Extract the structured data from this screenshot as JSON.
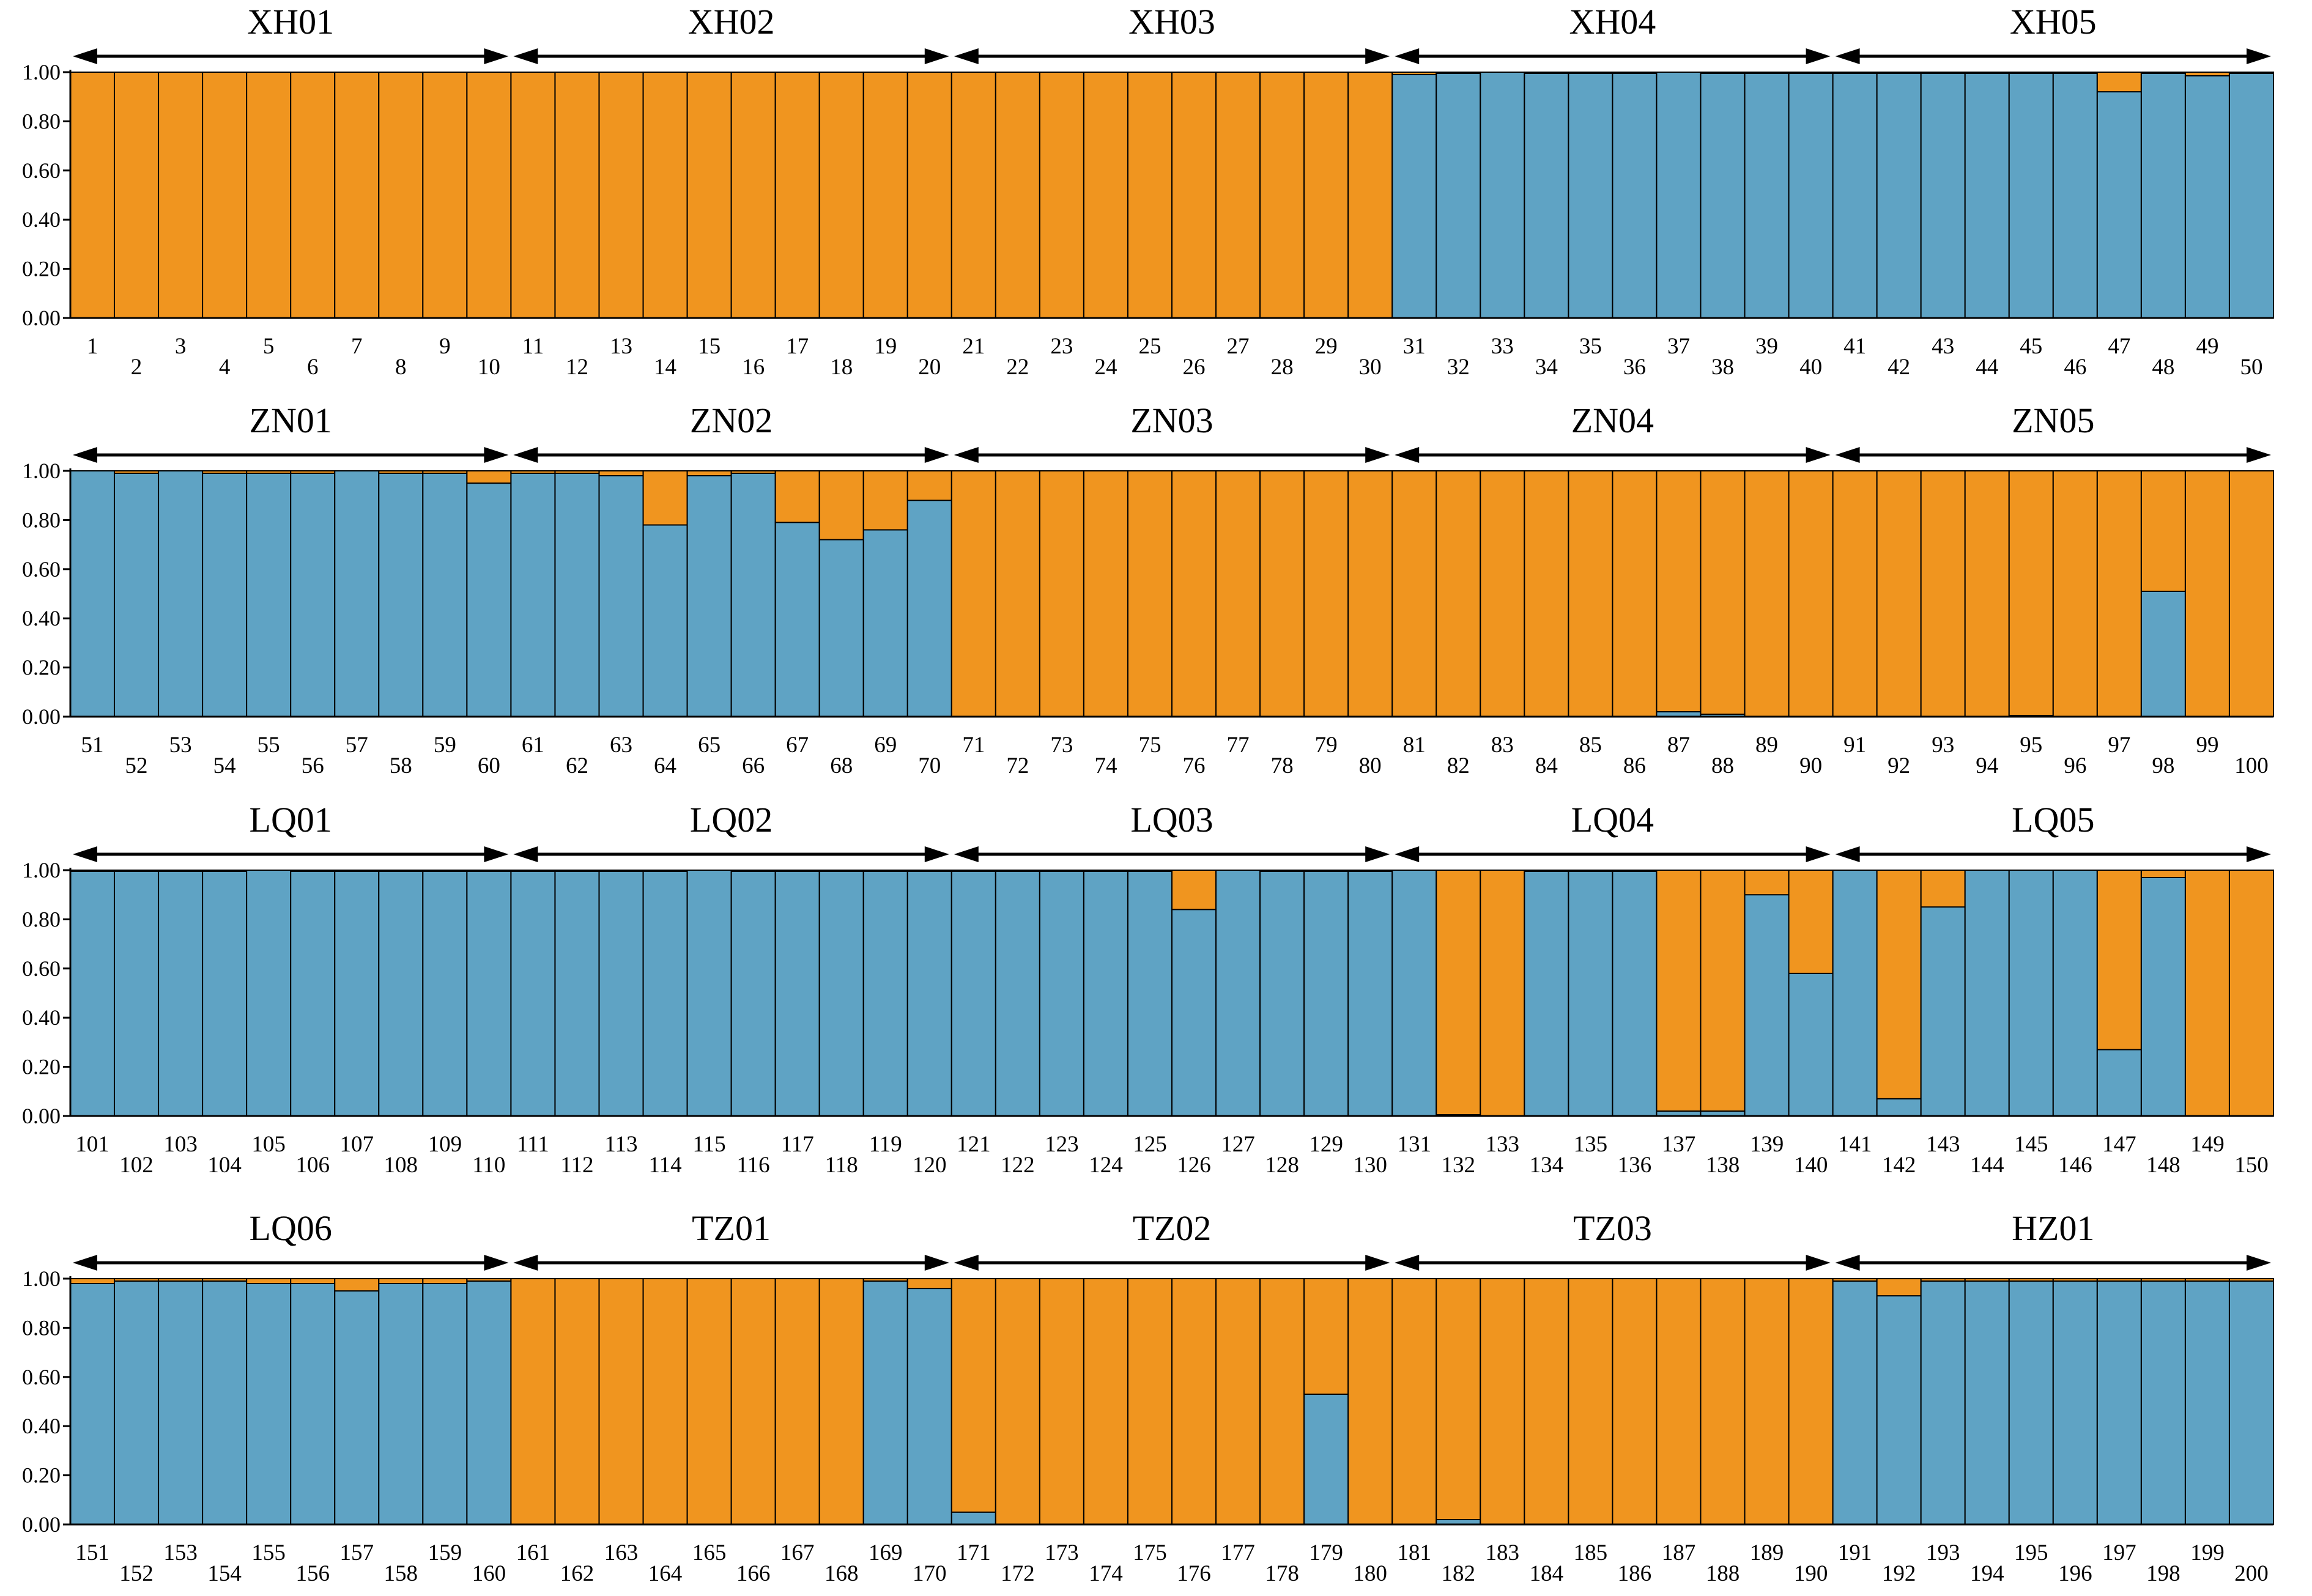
{
  "chart_data": {
    "type": "bar",
    "subtype": "stacked-admixture",
    "colors": {
      "cluster_1_blue": "#5fa3c4",
      "cluster_2_orange": "#f0951f",
      "outline": "#000000"
    },
    "y_ticks": [
      "0.00",
      "0.20",
      "0.40",
      "0.60",
      "0.80",
      "1.00"
    ],
    "ylim": [
      0,
      1
    ],
    "panels": [
      {
        "populations": [
          "XH01",
          "XH02",
          "XH03",
          "XH04",
          "XH05"
        ],
        "samples": [
          "1",
          "2",
          "3",
          "4",
          "5",
          "6",
          "7",
          "8",
          "9",
          "10",
          "11",
          "12",
          "13",
          "14",
          "15",
          "16",
          "17",
          "18",
          "19",
          "20",
          "21",
          "22",
          "23",
          "24",
          "25",
          "26",
          "27",
          "28",
          "29",
          "30",
          "31",
          "32",
          "33",
          "34",
          "35",
          "36",
          "37",
          "38",
          "39",
          "40",
          "41",
          "42",
          "43",
          "44",
          "45",
          "46",
          "47",
          "48",
          "49",
          "50"
        ],
        "blue": [
          0,
          0,
          0,
          0,
          0,
          0,
          0,
          0,
          0,
          0,
          0,
          0,
          0,
          0,
          0,
          0,
          0,
          0,
          0,
          0,
          0,
          0,
          0,
          0,
          0,
          0,
          0,
          0,
          0,
          0,
          0.99,
          0.995,
          1,
          0.995,
          0.995,
          0.995,
          1,
          0.995,
          0.995,
          0.995,
          0.995,
          0.995,
          0.995,
          0.995,
          0.995,
          0.995,
          0.92,
          0.995,
          0.985,
          0.995
        ]
      },
      {
        "populations": [
          "ZN01",
          "ZN02",
          "ZN03",
          "ZN04",
          "ZN05"
        ],
        "samples": [
          "51",
          "52",
          "53",
          "54",
          "55",
          "56",
          "57",
          "58",
          "59",
          "60",
          "61",
          "62",
          "63",
          "64",
          "65",
          "66",
          "67",
          "68",
          "69",
          "70",
          "71",
          "72",
          "73",
          "74",
          "75",
          "76",
          "77",
          "78",
          "79",
          "80",
          "81",
          "82",
          "83",
          "84",
          "85",
          "86",
          "87",
          "88",
          "89",
          "90",
          "91",
          "92",
          "93",
          "94",
          "95",
          "96",
          "97",
          "98",
          "99",
          "100"
        ],
        "blue": [
          1,
          0.99,
          1,
          0.99,
          0.99,
          0.99,
          1,
          0.99,
          0.99,
          0.95,
          0.99,
          0.99,
          0.98,
          0.78,
          0.98,
          0.99,
          0.79,
          0.72,
          0.76,
          0.88,
          0,
          0,
          0,
          0,
          0,
          0,
          0,
          0,
          0,
          0,
          0,
          0,
          0,
          0,
          0,
          0,
          0.02,
          0.01,
          0,
          0,
          0,
          0,
          0,
          0,
          0.005,
          0,
          0,
          0.51,
          0,
          0
        ]
      },
      {
        "populations": [
          "LQ01",
          "LQ02",
          "LQ03",
          "LQ04",
          "LQ05"
        ],
        "samples": [
          "101",
          "102",
          "103",
          "104",
          "105",
          "106",
          "107",
          "108",
          "109",
          "110",
          "111",
          "112",
          "113",
          "114",
          "115",
          "116",
          "117",
          "118",
          "119",
          "120",
          "121",
          "122",
          "123",
          "124",
          "125",
          "126",
          "127",
          "128",
          "129",
          "130",
          "131",
          "132",
          "133",
          "134",
          "135",
          "136",
          "137",
          "138",
          "139",
          "140",
          "141",
          "142",
          "143",
          "144",
          "145",
          "146",
          "147",
          "148",
          "149",
          "150"
        ],
        "blue": [
          0.995,
          0.995,
          0.995,
          0.995,
          1,
          0.995,
          0.995,
          0.995,
          0.995,
          0.995,
          0.995,
          0.995,
          0.995,
          0.995,
          1,
          0.995,
          0.995,
          0.995,
          0.995,
          0.995,
          0.995,
          0.995,
          0.995,
          0.995,
          0.995,
          0.84,
          1,
          0.995,
          0.995,
          0.995,
          1,
          0.005,
          0,
          0.995,
          0.995,
          0.995,
          0.02,
          0.02,
          0.9,
          0.58,
          1,
          0.07,
          0.85,
          1,
          1,
          1,
          0.27,
          0.97,
          0,
          0
        ]
      },
      {
        "populations": [
          "LQ06",
          "TZ01",
          "TZ02",
          "TZ03",
          "HZ01"
        ],
        "samples": [
          "151",
          "152",
          "153",
          "154",
          "155",
          "156",
          "157",
          "158",
          "159",
          "160",
          "161",
          "162",
          "163",
          "164",
          "165",
          "166",
          "167",
          "168",
          "169",
          "170",
          "171",
          "172",
          "173",
          "174",
          "175",
          "176",
          "177",
          "178",
          "179",
          "180",
          "181",
          "182",
          "183",
          "184",
          "185",
          "186",
          "187",
          "188",
          "189",
          "190",
          "191",
          "192",
          "193",
          "194",
          "195",
          "196",
          "197",
          "198",
          "199",
          "200"
        ],
        "blue": [
          0.98,
          0.99,
          0.99,
          0.99,
          0.98,
          0.98,
          0.95,
          0.98,
          0.98,
          0.99,
          0,
          0,
          0,
          0,
          0,
          0,
          0,
          0,
          0.99,
          0.96,
          0.05,
          0,
          0,
          0,
          0,
          0,
          0,
          0,
          0.53,
          0,
          0,
          0.02,
          0,
          0,
          0,
          0,
          0,
          0,
          0,
          0,
          0.99,
          0.93,
          0.99,
          0.99,
          0.99,
          0.99,
          0.99,
          0.99,
          0.99,
          0.99
        ]
      }
    ]
  }
}
